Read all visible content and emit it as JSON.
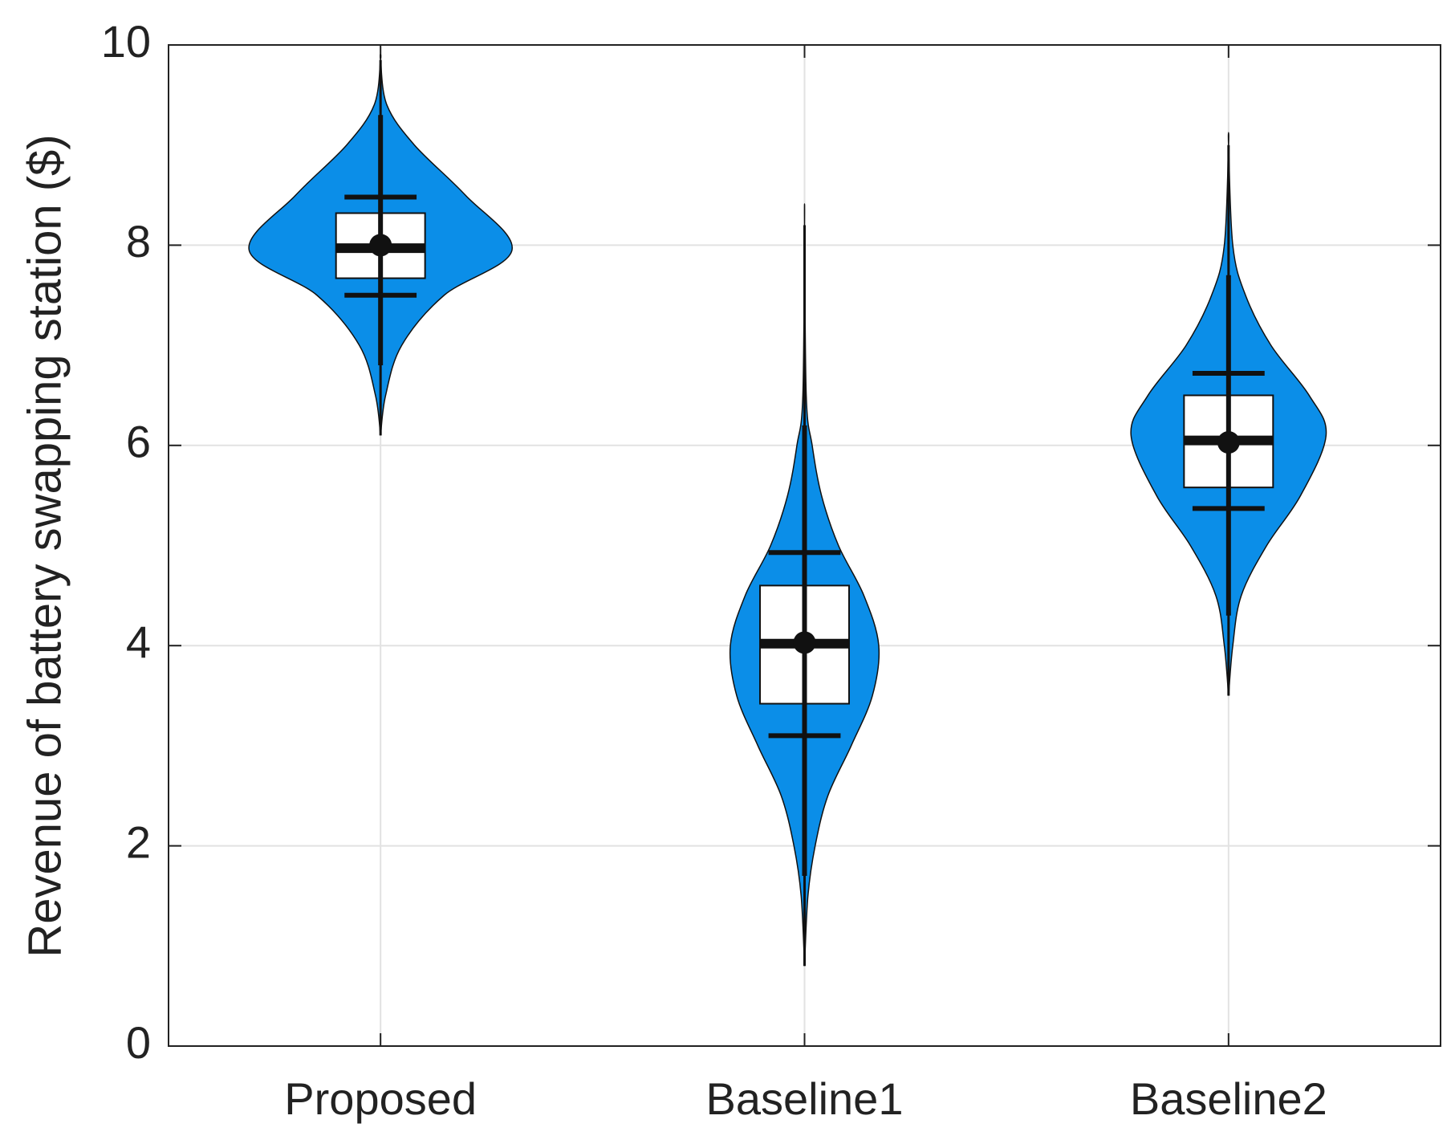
{
  "chart_data": {
    "type": "violin",
    "y_label": "Revenue of battery swapping station ($)",
    "categories": [
      "Proposed",
      "Baseline1",
      "Baseline2"
    ],
    "color": "#0b8ee8",
    "ylim": [
      0,
      10
    ],
    "yticks": [
      0,
      2,
      4,
      6,
      8,
      10
    ],
    "grid": true,
    "series": [
      {
        "min": 6.1,
        "max": 9.85,
        "whisker_low": 6.8,
        "whisker_high": 9.3,
        "q1": 7.67,
        "median": 7.97,
        "q3": 8.32,
        "mean": 8.0,
        "mean_minus_std": 7.5,
        "mean_plus_std": 8.48,
        "profile_y": [
          6.1,
          6.5,
          7.0,
          7.5,
          7.95,
          8.5,
          9.0,
          9.4,
          9.85
        ],
        "profile_width": [
          0,
          0.012,
          0.05,
          0.15,
          0.31,
          0.2,
          0.08,
          0.015,
          0
        ]
      },
      {
        "min": 0.8,
        "max": 8.2,
        "whisker_low": 1.7,
        "whisker_high": 6.2,
        "q1": 3.42,
        "median": 4.02,
        "q3": 4.6,
        "mean": 4.03,
        "mean_minus_std": 3.1,
        "mean_plus_std": 4.93,
        "profile_y": [
          0.8,
          1.5,
          2.0,
          2.5,
          3.0,
          3.5,
          4.0,
          4.5,
          5.0,
          5.5,
          6.0,
          6.5,
          8.2
        ],
        "profile_width": [
          0,
          0.008,
          0.025,
          0.055,
          0.11,
          0.16,
          0.175,
          0.14,
          0.08,
          0.04,
          0.018,
          0.004,
          0
        ]
      },
      {
        "min": 3.5,
        "max": 9.0,
        "whisker_low": 4.3,
        "whisker_high": 7.7,
        "q1": 5.58,
        "median": 6.05,
        "q3": 6.5,
        "mean": 6.03,
        "mean_minus_std": 5.37,
        "mean_plus_std": 6.72,
        "profile_y": [
          3.5,
          4.0,
          4.5,
          5.0,
          5.5,
          6.1,
          6.5,
          7.0,
          7.5,
          8.0,
          9.0
        ],
        "profile_width": [
          0,
          0.01,
          0.03,
          0.09,
          0.17,
          0.23,
          0.19,
          0.1,
          0.04,
          0.01,
          0
        ]
      }
    ]
  }
}
